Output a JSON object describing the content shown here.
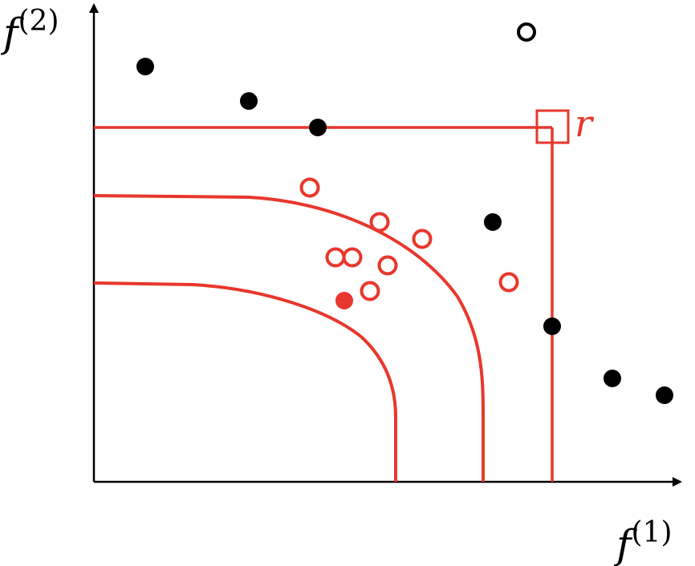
{
  "axes": {
    "x_label": "f",
    "x_sup": "(1)",
    "y_label": "f",
    "y_sup": "(2)"
  },
  "reference_point": {
    "label": "r"
  },
  "colors": {
    "axis": "#000000",
    "highlight": "#e8372c"
  }
}
